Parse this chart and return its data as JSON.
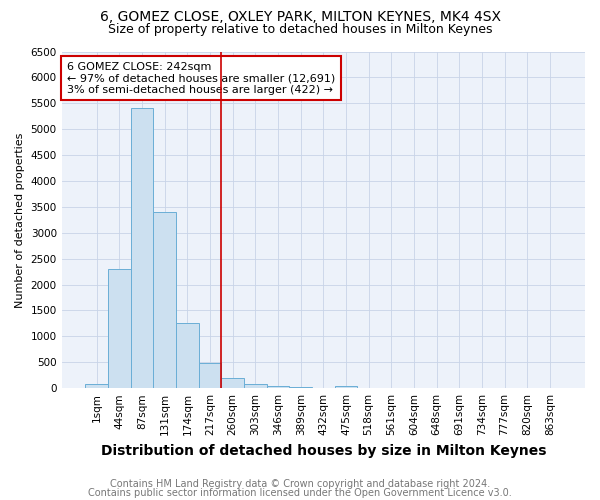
{
  "title": "6, GOMEZ CLOSE, OXLEY PARK, MILTON KEYNES, MK4 4SX",
  "subtitle": "Size of property relative to detached houses in Milton Keynes",
  "xlabel": "Distribution of detached houses by size in Milton Keynes",
  "ylabel": "Number of detached properties",
  "bar_labels": [
    "1sqm",
    "44sqm",
    "87sqm",
    "131sqm",
    "174sqm",
    "217sqm",
    "260sqm",
    "303sqm",
    "346sqm",
    "389sqm",
    "432sqm",
    "475sqm",
    "518sqm",
    "561sqm",
    "604sqm",
    "648sqm",
    "691sqm",
    "734sqm",
    "777sqm",
    "820sqm",
    "863sqm"
  ],
  "bar_values": [
    80,
    2300,
    5400,
    3400,
    1250,
    490,
    200,
    80,
    50,
    30,
    0,
    50,
    0,
    0,
    0,
    0,
    0,
    0,
    0,
    0,
    0
  ],
  "bar_color": "#cce0f0",
  "bar_edgecolor": "#6aaed6",
  "vline_x": 5.5,
  "vline_color": "#cc0000",
  "ylim": [
    0,
    6500
  ],
  "yticks": [
    0,
    500,
    1000,
    1500,
    2000,
    2500,
    3000,
    3500,
    4000,
    4500,
    5000,
    5500,
    6000,
    6500
  ],
  "annotation_text": "6 GOMEZ CLOSE: 242sqm\n← 97% of detached houses are smaller (12,691)\n3% of semi-detached houses are larger (422) →",
  "annotation_boxcolor": "white",
  "annotation_edgecolor": "#cc0000",
  "footer1": "Contains HM Land Registry data © Crown copyright and database right 2024.",
  "footer2": "Contains public sector information licensed under the Open Government Licence v3.0.",
  "title_fontsize": 10,
  "subtitle_fontsize": 9,
  "xlabel_fontsize": 10,
  "ylabel_fontsize": 8,
  "footer_fontsize": 7,
  "tick_fontsize": 7.5,
  "annotation_fontsize": 8,
  "grid_color": "#c8d4e8",
  "bg_color": "#edf2fa"
}
